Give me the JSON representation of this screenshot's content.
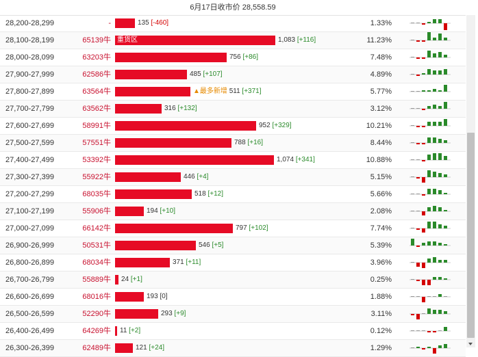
{
  "header": {
    "title": "6月17日收市价 28,558.59"
  },
  "colors": {
    "bar": "#e60b25",
    "up": "#2a8a2a",
    "down": "#d40000",
    "hot": "#e68a00"
  },
  "rows": [
    {
      "range": "28,200-28,299",
      "code": "-",
      "count": "135",
      "change": "[-460]",
      "dir": "neg",
      "pct": "1.33%",
      "tag": "",
      "count_value": 135,
      "spark": [
        0,
        0,
        -1,
        1,
        3,
        3,
        -5
      ]
    },
    {
      "range": "28,100-28,199",
      "code": "65139牛",
      "count": "1,083",
      "change": "[+116]",
      "dir": "pos",
      "pct": "11.23%",
      "tag": "重货区",
      "count_value": 1083,
      "spark": [
        0,
        -1,
        -1,
        6,
        2,
        5,
        2
      ]
    },
    {
      "range": "28,000-28,099",
      "code": "63203牛",
      "count": "756",
      "change": "[+86]",
      "dir": "pos",
      "pct": "7.48%",
      "tag": "",
      "count_value": 756,
      "spark": [
        0,
        -1,
        -1,
        5,
        3,
        4,
        2
      ]
    },
    {
      "range": "27,900-27,999",
      "code": "62586牛",
      "count": "485",
      "change": "[+107]",
      "dir": "pos",
      "pct": "4.89%",
      "tag": "",
      "count_value": 485,
      "spark": [
        0,
        -1,
        1,
        4,
        3,
        3,
        4
      ]
    },
    {
      "range": "27,800-27,899",
      "code": "63564牛",
      "count": "511",
      "change": "[+371]",
      "dir": "pos",
      "pct": "5.77%",
      "tag": "",
      "hot": "▲最多新增",
      "count_value": 511,
      "spark": [
        0,
        0,
        1,
        1,
        2,
        1,
        5
      ]
    },
    {
      "range": "27,700-27,799",
      "code": "63562牛",
      "count": "316",
      "change": "[+132]",
      "dir": "pos",
      "pct": "3.12%",
      "tag": "",
      "count_value": 316,
      "spark": [
        0,
        0,
        -1,
        2,
        3,
        2,
        5
      ]
    },
    {
      "range": "27,600-27,699",
      "code": "58991牛",
      "count": "952",
      "change": "[+329]",
      "dir": "pos",
      "pct": "10.21%",
      "tag": "",
      "count_value": 952,
      "spark": [
        0,
        -1,
        -1,
        3,
        3,
        3,
        5
      ]
    },
    {
      "range": "27,500-27,599",
      "code": "57551牛",
      "count": "788",
      "change": "[+16]",
      "dir": "pos",
      "pct": "8.44%",
      "tag": "",
      "count_value": 788,
      "spark": [
        0,
        -1,
        -1,
        4,
        4,
        3,
        2
      ]
    },
    {
      "range": "27,400-27,499",
      "code": "53392牛",
      "count": "1,074",
      "change": "[+341]",
      "dir": "pos",
      "pct": "10.88%",
      "tag": "",
      "count_value": 1074,
      "spark": [
        0,
        0,
        -1,
        4,
        5,
        5,
        3
      ]
    },
    {
      "range": "27,300-27,399",
      "code": "55922牛",
      "count": "446",
      "change": "[+4]",
      "dir": "pos",
      "pct": "5.15%",
      "tag": "",
      "count_value": 446,
      "spark": [
        0,
        -1,
        -4,
        5,
        4,
        3,
        2
      ]
    },
    {
      "range": "27,200-27,299",
      "code": "68035牛",
      "count": "518",
      "change": "[+12]",
      "dir": "pos",
      "pct": "5.66%",
      "tag": "",
      "count_value": 518,
      "spark": [
        0,
        0,
        -1,
        4,
        4,
        3,
        1
      ]
    },
    {
      "range": "27,100-27,199",
      "code": "55906牛",
      "count": "194",
      "change": "[+10]",
      "dir": "pos",
      "pct": "2.08%",
      "tag": "",
      "count_value": 194,
      "spark": [
        0,
        0,
        -3,
        3,
        4,
        3,
        1
      ]
    },
    {
      "range": "27,000-27,099",
      "code": "66142牛",
      "count": "797",
      "change": "[+102]",
      "dir": "pos",
      "pct": "7.74%",
      "tag": "",
      "count_value": 797,
      "spark": [
        0,
        -1,
        -3,
        5,
        5,
        3,
        2
      ]
    },
    {
      "range": "26,900-26,999",
      "code": "50531牛",
      "count": "546",
      "change": "[+5]",
      "dir": "pos",
      "pct": "5.39%",
      "tag": "",
      "count_value": 546,
      "spark": [
        5,
        -1,
        2,
        3,
        3,
        2,
        1
      ]
    },
    {
      "range": "26,800-26,899",
      "code": "68034牛",
      "count": "371",
      "change": "[+11]",
      "dir": "pos",
      "pct": "3.96%",
      "tag": "",
      "count_value": 371,
      "spark": [
        0,
        -3,
        -4,
        3,
        4,
        2,
        2
      ]
    },
    {
      "range": "26,700-26,799",
      "code": "55889牛",
      "count": "24",
      "change": "[+1]",
      "dir": "pos",
      "pct": "0.25%",
      "tag": "",
      "count_value": 24,
      "spark": [
        0,
        -1,
        -4,
        -4,
        2,
        2,
        1
      ]
    },
    {
      "range": "26,600-26,699",
      "code": "68016牛",
      "count": "193",
      "change": "[0]",
      "dir": "zero",
      "pct": "1.88%",
      "tag": "",
      "count_value": 193,
      "spark": [
        0,
        0,
        -4,
        0,
        0,
        2,
        0
      ]
    },
    {
      "range": "26,500-26,599",
      "code": "52290牛",
      "count": "293",
      "change": "[+9]",
      "dir": "pos",
      "pct": "3.11%",
      "tag": "",
      "count_value": 293,
      "spark": [
        -1,
        -4,
        0,
        4,
        3,
        3,
        2
      ]
    },
    {
      "range": "26,400-26,499",
      "code": "64269牛",
      "count": "11",
      "change": "[+2]",
      "dir": "pos",
      "pct": "0.12%",
      "tag": "",
      "count_value": 11,
      "spark": [
        0,
        0,
        0,
        -1,
        -1,
        0,
        3
      ]
    },
    {
      "range": "26,300-26,399",
      "code": "62489牛",
      "count": "121",
      "change": "[+24]",
      "dir": "pos",
      "pct": "1.29%",
      "tag": "",
      "count_value": 121,
      "spark": [
        0,
        1,
        -1,
        1,
        -4,
        2,
        3
      ]
    }
  ]
}
